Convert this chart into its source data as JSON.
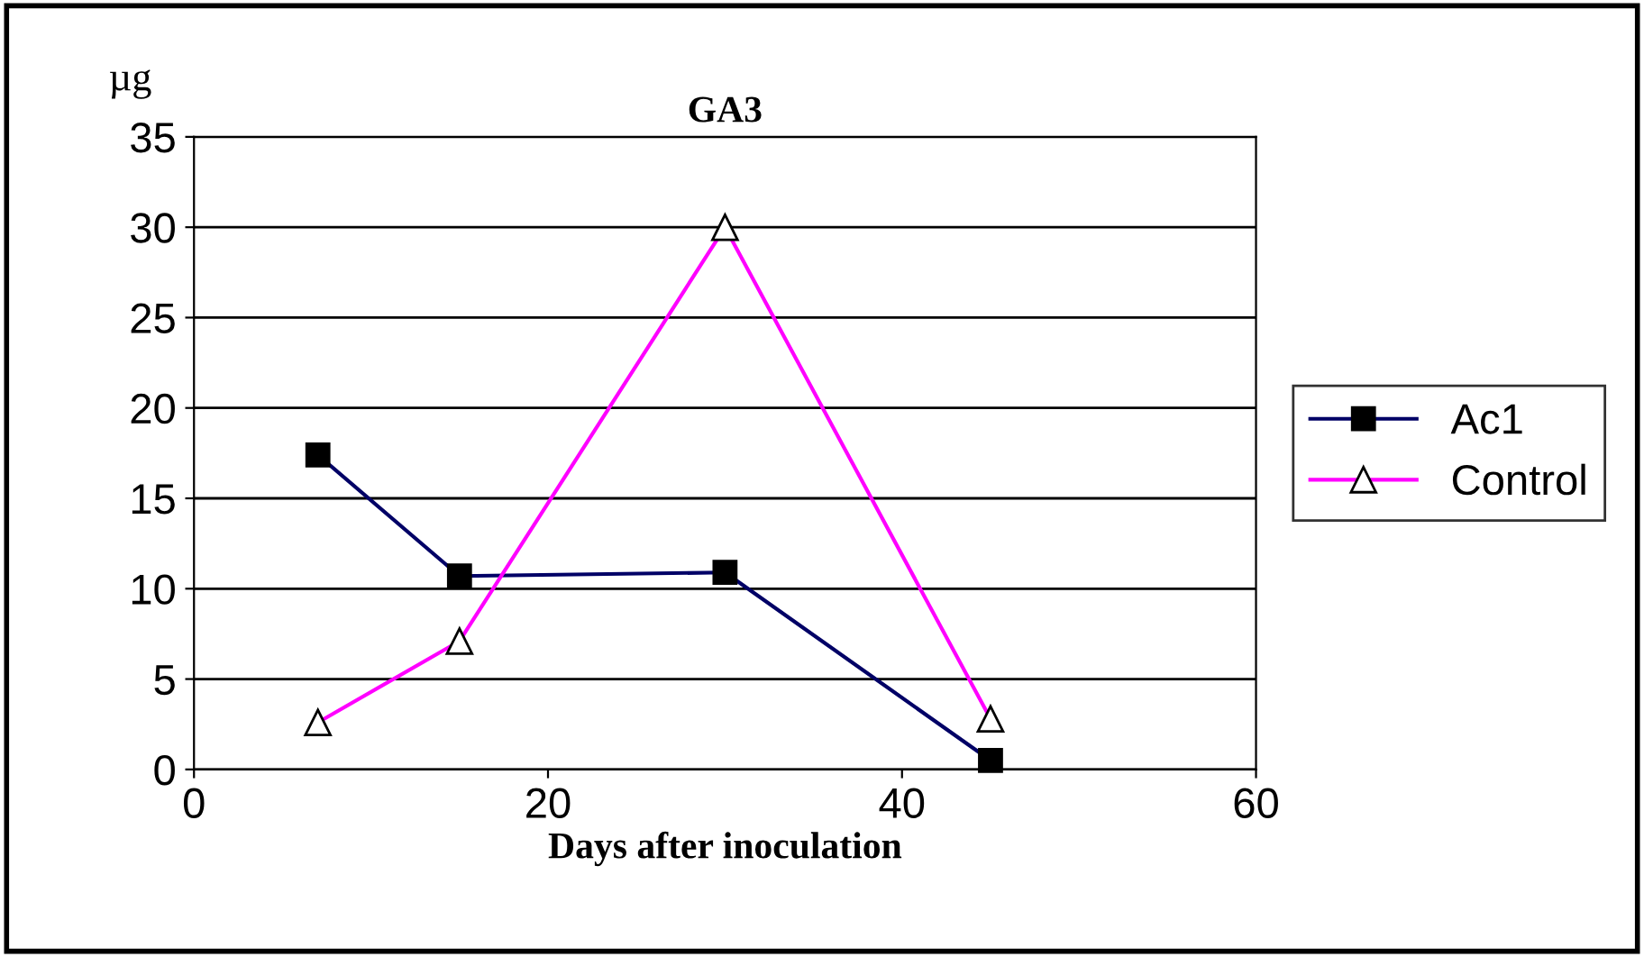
{
  "chart_data": {
    "type": "line",
    "title": "GA3",
    "xlabel": "Days after inoculation",
    "ylabel": "µg",
    "xlim": [
      0,
      60
    ],
    "xticks": [
      0,
      20,
      40,
      60
    ],
    "ylim": [
      0,
      35
    ],
    "yticks": [
      0,
      5,
      10,
      15,
      20,
      25,
      30,
      35
    ],
    "grid": "y",
    "legend": "right",
    "series": [
      {
        "name": "Ac1",
        "color": "#000066",
        "marker": "square",
        "x": [
          7,
          15,
          30,
          45
        ],
        "values": [
          17.4,
          10.7,
          10.9,
          0.5
        ]
      },
      {
        "name": "Control",
        "color": "#ff00ff",
        "marker": "triangle",
        "x": [
          7,
          15,
          30,
          45
        ],
        "values": [
          2.6,
          7.1,
          30,
          2.8
        ]
      }
    ]
  }
}
